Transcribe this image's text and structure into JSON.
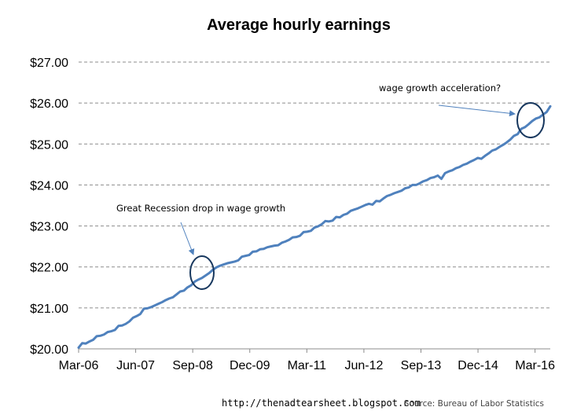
{
  "chart_data": {
    "type": "line",
    "title": "Average hourly earnings",
    "ylabel": "",
    "xlabel": "",
    "ylim": [
      20,
      27
    ],
    "y_ticks": [
      "$20.00",
      "$21.00",
      "$22.00",
      "$23.00",
      "$24.00",
      "$25.00",
      "$26.00",
      "$27.00"
    ],
    "x_tick_labels": [
      "Mar-06",
      "Jun-07",
      "Sep-08",
      "Dec-09",
      "Mar-11",
      "Jun-12",
      "Sep-13",
      "Dec-14",
      "Mar-16"
    ],
    "x_start": "Mar-06",
    "x_end": "Jul-16",
    "grid": true,
    "line_color": "#4f81bd",
    "annotation_color": "#17375e",
    "series": [
      {
        "values": [
          20.03,
          20.14,
          20.13,
          20.18,
          20.22,
          20.31,
          20.32,
          20.35,
          20.41,
          20.43,
          20.46,
          20.56,
          20.57,
          20.61,
          20.67,
          20.76,
          20.8,
          20.85,
          20.98,
          20.99,
          21.02,
          21.06,
          21.1,
          21.14,
          21.19,
          21.23,
          21.26,
          21.33,
          21.4,
          21.42,
          21.5,
          21.55,
          21.64,
          21.69,
          21.73,
          21.79,
          21.85,
          21.93,
          21.99,
          22.03,
          22.06,
          22.09,
          22.11,
          22.13,
          22.16,
          22.25,
          22.27,
          22.29,
          22.37,
          22.38,
          22.43,
          22.44,
          22.48,
          22.5,
          22.52,
          22.53,
          22.59,
          22.62,
          22.66,
          22.72,
          22.73,
          22.76,
          22.85,
          22.86,
          22.88,
          22.96,
          22.99,
          23.04,
          23.12,
          23.11,
          23.13,
          23.22,
          23.21,
          23.27,
          23.3,
          23.37,
          23.4,
          23.43,
          23.47,
          23.51,
          23.54,
          23.52,
          23.61,
          23.6,
          23.67,
          23.73,
          23.76,
          23.8,
          23.83,
          23.86,
          23.92,
          23.94,
          24.0,
          24.0,
          24.04,
          24.09,
          24.12,
          24.17,
          24.19,
          24.23,
          24.15,
          24.29,
          24.33,
          24.36,
          24.41,
          24.44,
          24.49,
          24.52,
          24.57,
          24.61,
          24.66,
          24.64,
          24.71,
          24.77,
          24.84,
          24.87,
          24.93,
          24.98,
          25.04,
          25.11,
          25.2,
          25.24,
          25.37,
          25.41,
          25.48,
          25.56,
          25.62,
          25.65,
          25.72,
          25.78,
          25.92
        ]
      }
    ],
    "annotations": [
      {
        "text": "Great Recession drop in wage growth"
      },
      {
        "text": "wage growth acceleration?"
      }
    ]
  },
  "footer": {
    "url": "http://thenadtearsheet.blogspot.com",
    "source": "Source: Bureau of Labor Statistics"
  }
}
